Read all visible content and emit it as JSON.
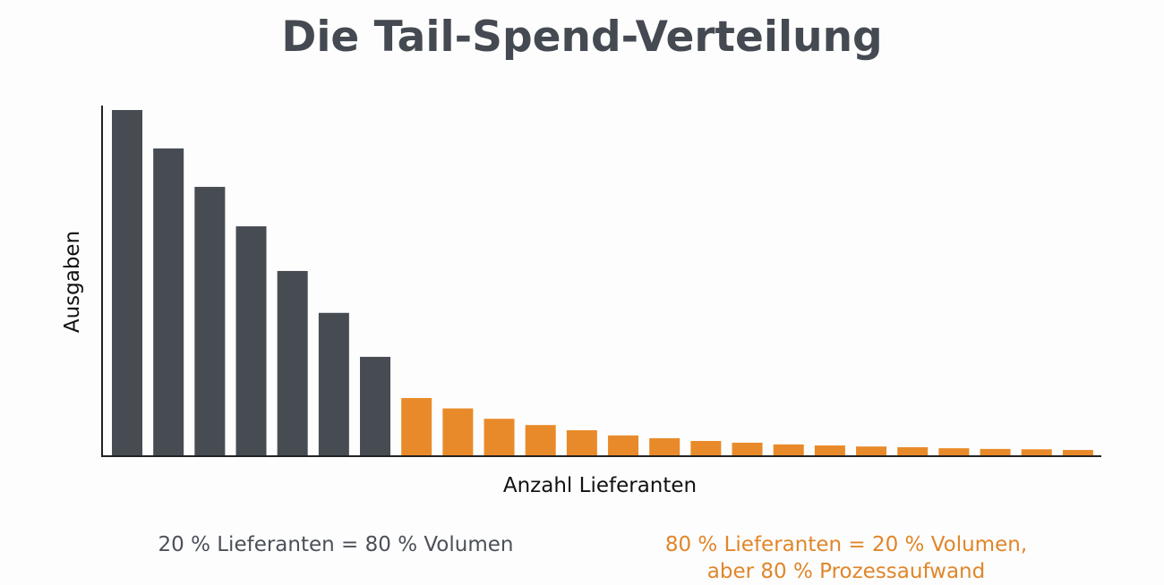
{
  "chart_data": {
    "type": "bar",
    "title": "Die Tail-Spend-Verteilung",
    "xlabel": "Anzahl Lieferanten",
    "ylabel": "Ausgaben",
    "ylim": [
      0,
      100
    ],
    "grid": false,
    "values": [
      100,
      88.9,
      77.8,
      66.4,
      53.5,
      41.4,
      28.7,
      16.8,
      13.8,
      10.8,
      9.0,
      7.5,
      6.0,
      5.2,
      4.4,
      3.9,
      3.4,
      3.1,
      2.8,
      2.6,
      2.3,
      2.1,
      2.0,
      1.8
    ],
    "colors": [
      "#474c53",
      "#474c53",
      "#474c53",
      "#474c53",
      "#474c53",
      "#474c53",
      "#474c53",
      "#e98a2a",
      "#e98a2a",
      "#e98a2a",
      "#e98a2a",
      "#e98a2a",
      "#e98a2a",
      "#e98a2a",
      "#e98a2a",
      "#e98a2a",
      "#e98a2a",
      "#e98a2a",
      "#e98a2a",
      "#e98a2a",
      "#e98a2a",
      "#e98a2a",
      "#e98a2a",
      "#e98a2a"
    ],
    "annotations": [
      {
        "text": "20 % Lieferanten = 80 % Volumen",
        "color": "#4b5059"
      },
      {
        "text": "80 % Lieferanten = 20 % Volumen,\naber 80 % Prozessaufwand",
        "color": "#e0862a"
      }
    ]
  }
}
